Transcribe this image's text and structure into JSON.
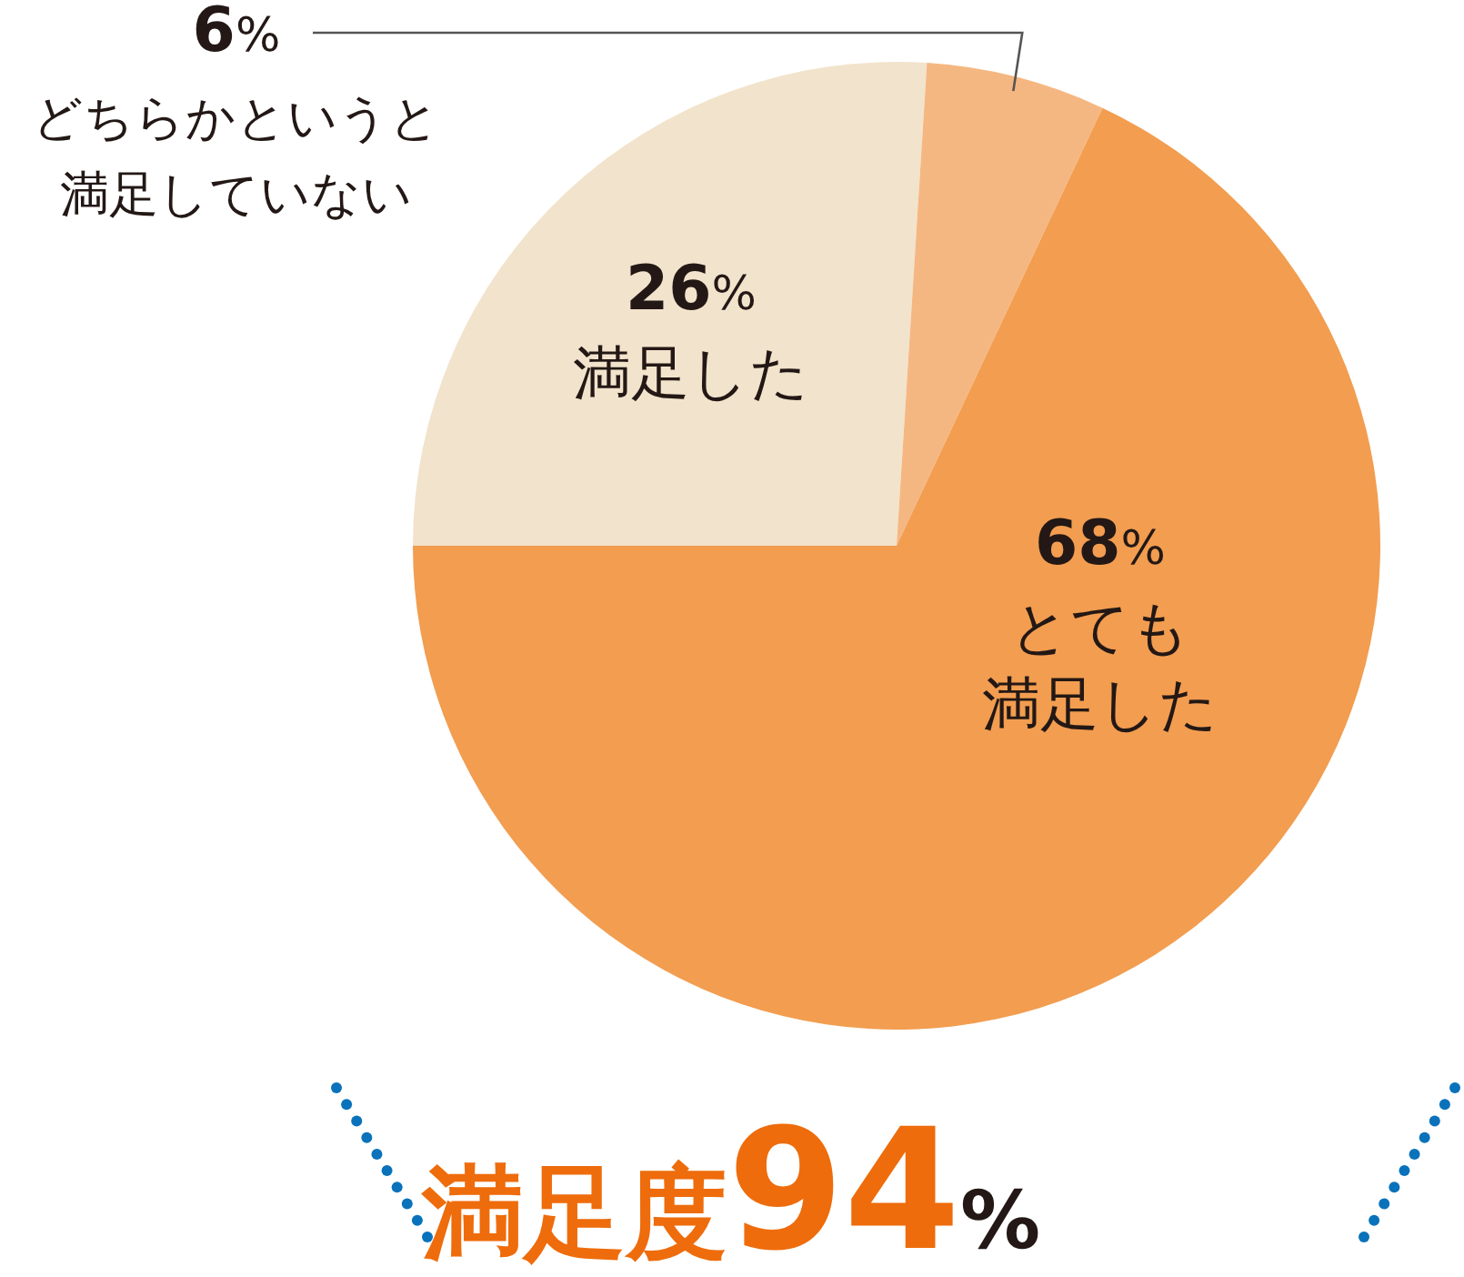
{
  "chart_data": {
    "type": "pie",
    "title": "満足度94%",
    "categories": [
      "満足した",
      "どちらかというと満足していない",
      "とても満足した"
    ],
    "values": [
      26,
      6,
      68
    ],
    "value_labels": [
      "26%",
      "6%",
      "68%"
    ],
    "colors": [
      "#f2e3cc",
      "#f5b781",
      "#f29d50"
    ]
  }
}
